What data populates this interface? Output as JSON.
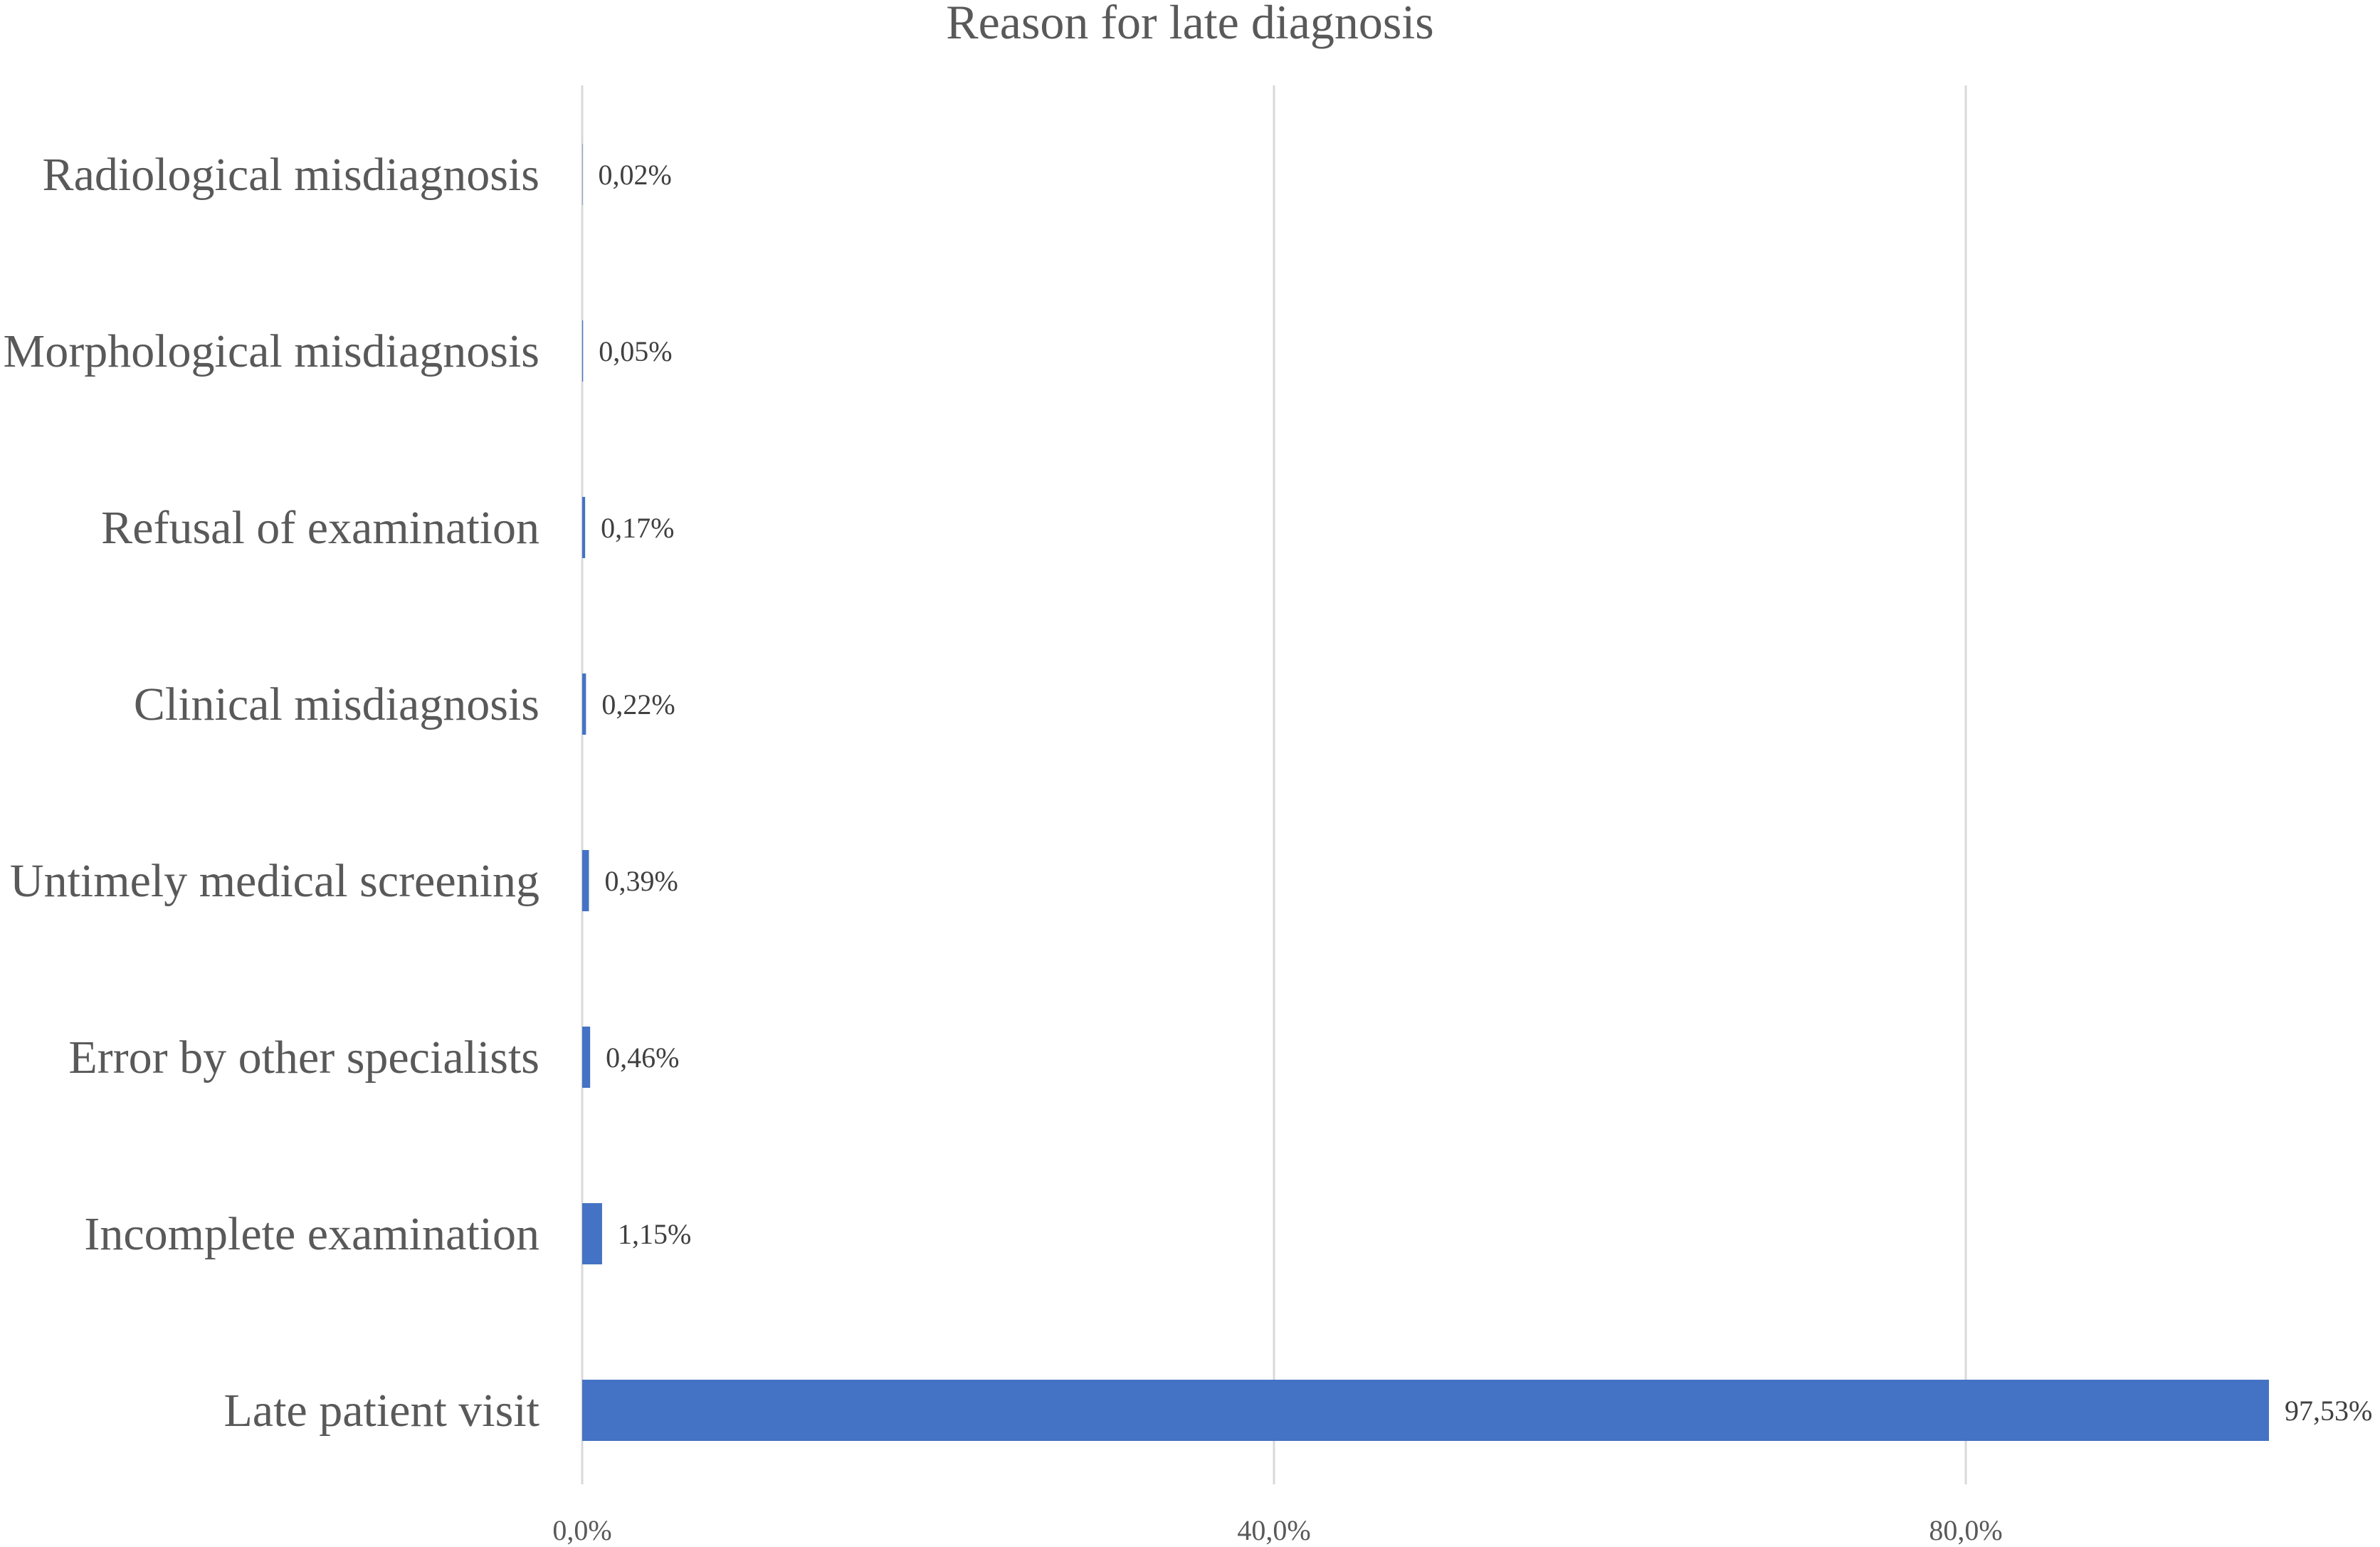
{
  "chart_data": {
    "type": "bar",
    "orientation": "horizontal",
    "title": "Reason for late diagnosis",
    "categories": [
      "Radiological misdiagnosis",
      "Morphological misdiagnosis",
      "Refusal of examination",
      "Clinical misdiagnosis",
      "Untimely medical screening",
      "Error by other specialists",
      "Incomplete examination",
      "Late patient visit"
    ],
    "values": [
      0.02,
      0.05,
      0.17,
      0.22,
      0.39,
      0.46,
      1.15,
      97.53
    ],
    "data_labels": [
      "0,02%",
      "0,05%",
      "0,17%",
      "0,22%",
      "0,39%",
      "0,46%",
      "1,15%",
      "97,53%"
    ],
    "x_ticks": [
      0,
      40,
      80
    ],
    "x_tick_labels": [
      "0,0%",
      "40,0%",
      "80,0%"
    ],
    "xlim": [
      0,
      100
    ],
    "xlabel": "",
    "ylabel": "",
    "grid": "vertical",
    "legend": "none",
    "colors": {
      "bar": "#4472C4",
      "grid": "#d9d9d9",
      "text": "#595959"
    }
  }
}
